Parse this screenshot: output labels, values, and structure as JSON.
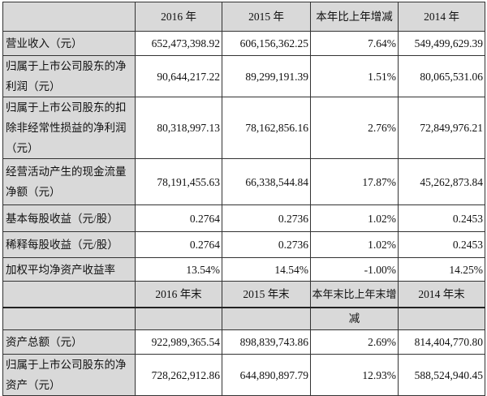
{
  "header1": [
    "",
    "2016 年",
    "2015 年",
    "本年比上年增减",
    "2014 年"
  ],
  "rows1": [
    {
      "label": "营业收入（元）",
      "values": [
        "652,473,398.92",
        "606,156,362.25",
        "7.64%",
        "549,499,629.39"
      ]
    },
    {
      "label": "归属于上市公司股东的净利润（元）",
      "values": [
        "90,644,217.22",
        "89,299,191.39",
        "1.51%",
        "80,065,531.06"
      ]
    },
    {
      "label": "归属于上市公司股东的扣除非经常性损益的净利润（元）",
      "values": [
        "80,318,997.13",
        "78,162,856.16",
        "2.76%",
        "72,849,976.21"
      ]
    },
    {
      "label": "经营活动产生的现金流量净额（元）",
      "values": [
        "78,191,455.63",
        "66,338,544.84",
        "17.87%",
        "45,262,873.84"
      ]
    },
    {
      "label": "基本每股收益（元/股）",
      "values": [
        "0.2764",
        "0.2736",
        "1.02%",
        "0.2453"
      ]
    },
    {
      "label": "稀释每股收益（元/股）",
      "values": [
        "0.2764",
        "0.2736",
        "1.02%",
        "0.2453"
      ]
    },
    {
      "label": "加权平均净资产收益率",
      "values": [
        "13.54%",
        "14.54%",
        "-1.00%",
        "14.25%"
      ]
    }
  ],
  "header2": [
    "",
    "2016 年末",
    "2015 年末",
    "本年末比上年末增",
    "2014 年末"
  ],
  "header2_cont": "减",
  "rows2": [
    {
      "label": "资产总额（元）",
      "values": [
        "922,989,365.54",
        "898,839,743.86",
        "2.69%",
        "814,404,770.80"
      ]
    },
    {
      "label": "归属于上市公司股东的净资产（元）",
      "values": [
        "728,262,912.86",
        "644,890,897.79",
        "12.93%",
        "588,524,940.45"
      ]
    }
  ]
}
